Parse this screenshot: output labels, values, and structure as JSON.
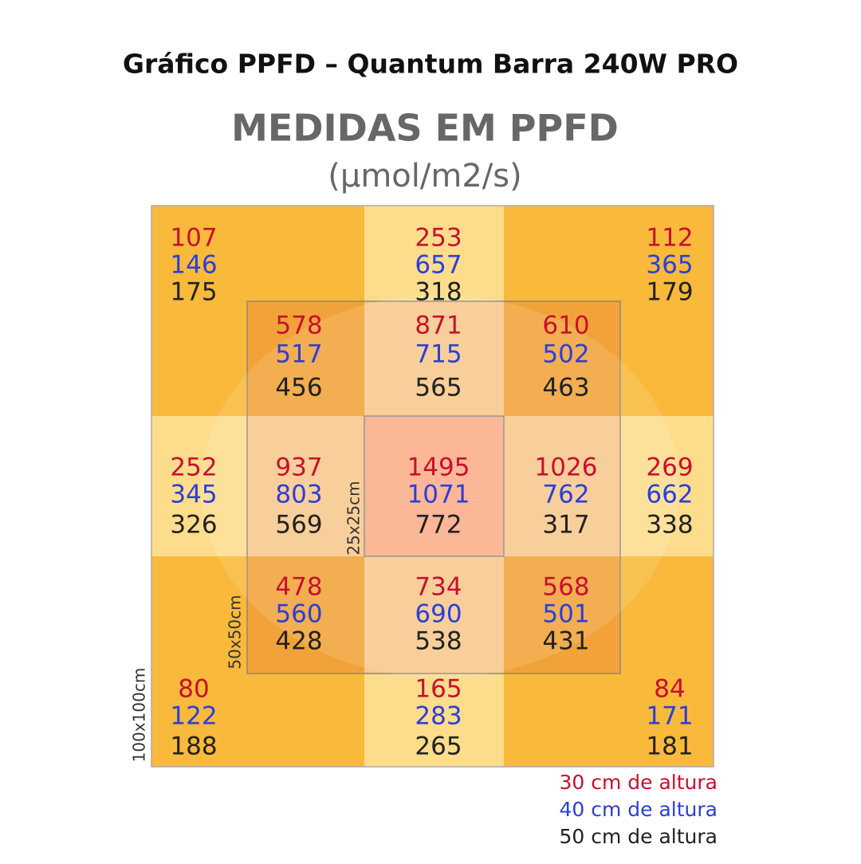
{
  "title": "Gráfico PPFD – Quantum Barra 240W PRO",
  "heading": "MEDIDAS EM PPFD",
  "unit": "(µmol/m2/s)",
  "areas": [
    "25x25cm",
    "50x50cm",
    "100x100cm"
  ],
  "points": [
    {
      "values": [
        107,
        146,
        175
      ]
    },
    {
      "values": [
        253,
        657,
        318
      ]
    },
    {
      "values": [
        112,
        365,
        179
      ]
    },
    {
      "values": [
        578,
        517,
        456
      ]
    },
    {
      "values": [
        871,
        715,
        565
      ]
    },
    {
      "values": [
        610,
        502,
        463
      ]
    },
    {
      "values": [
        252,
        345,
        326
      ]
    },
    {
      "values": [
        937,
        803,
        569
      ]
    },
    {
      "values": [
        1495,
        1071,
        772
      ]
    },
    {
      "values": [
        1026,
        762,
        317
      ]
    },
    {
      "values": [
        269,
        662,
        338
      ]
    },
    {
      "values": [
        478,
        560,
        428
      ]
    },
    {
      "values": [
        734,
        690,
        538
      ]
    },
    {
      "values": [
        568,
        501,
        431
      ]
    },
    {
      "values": [
        80,
        122,
        188
      ]
    },
    {
      "values": [
        165,
        283,
        265
      ]
    },
    {
      "values": [
        84,
        171,
        181
      ]
    }
  ],
  "legend": [
    {
      "label": "30 cm de altura",
      "color": "#c8102e"
    },
    {
      "label": "40 cm de altura",
      "color": "#2b3fd8"
    },
    {
      "label": "50 cm de altura",
      "color": "#222222"
    }
  ]
}
